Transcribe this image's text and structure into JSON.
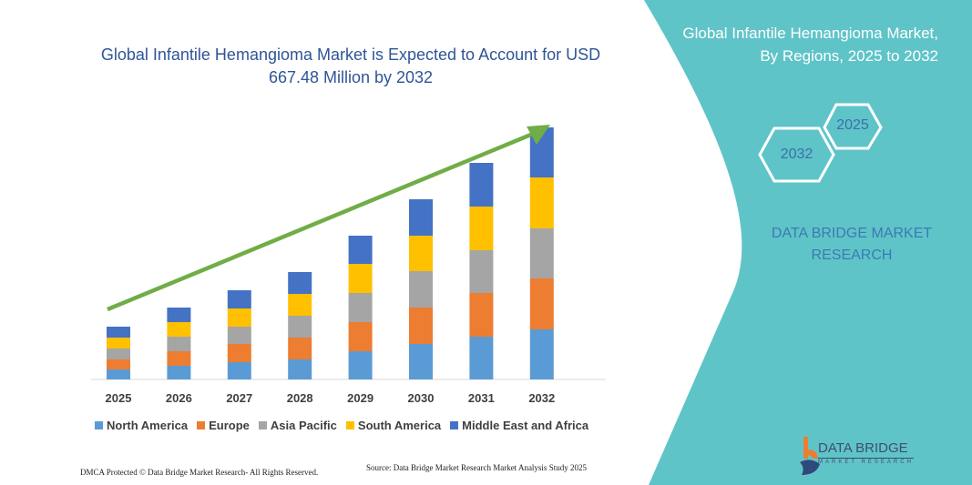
{
  "chart_data": {
    "type": "bar",
    "stacked": true,
    "title": "Global Infantile Hemangioma Market is Expected to Account for USD 667.48 Million by 2032",
    "categories": [
      "2025",
      "2026",
      "2027",
      "2028",
      "2029",
      "2030",
      "2031",
      "2032"
    ],
    "series": [
      {
        "name": "North America",
        "color": "#5b9bd5",
        "values": [
          11,
          15,
          19,
          22,
          31,
          39,
          47,
          55
        ]
      },
      {
        "name": "Europe",
        "color": "#ed7d31",
        "values": [
          11,
          16,
          20,
          24,
          32,
          40,
          48,
          56
        ]
      },
      {
        "name": "Asia Pacific",
        "color": "#a5a5a5",
        "values": [
          12,
          16,
          19,
          24,
          32,
          40,
          47,
          55
        ]
      },
      {
        "name": "South America",
        "color": "#ffc000",
        "values": [
          12,
          16,
          20,
          24,
          32,
          39,
          48,
          56
        ]
      },
      {
        "name": "Middle East and Africa",
        "color": "#4472c4",
        "values": [
          12,
          16,
          20,
          24,
          31,
          40,
          48,
          55
        ]
      }
    ],
    "legend_position": "bottom",
    "grid": false,
    "trend_arrow_color": "#70ad47"
  },
  "side_panel": {
    "title": "Global Infantile Hemangioma Market, By Regions, 2025 to 2032",
    "hex_start": "2025",
    "hex_end": "2032",
    "brand": "DATA BRIDGE MARKET RESEARCH",
    "color": "#5fc4c8"
  },
  "footer": {
    "dmca": "DMCA Protected © Data Bridge Market Research- All Rights Reserved.",
    "source": "Source: Data Bridge Market Research Market Analysis Study 2025"
  },
  "logo": {
    "name": "DATA BRIDGE",
    "sub": "MARKET RESEARCH"
  }
}
